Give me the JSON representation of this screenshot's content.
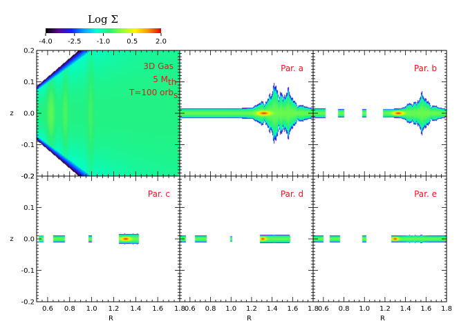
{
  "chart_data": {
    "type": "heatmap",
    "colorbar": {
      "title": "Log Σ",
      "ticks": [
        "-4.0",
        "-2.5",
        "-1.0",
        "0.5",
        "2.0"
      ],
      "range": [
        -4.0,
        2.0
      ],
      "colors": [
        "#000000",
        "#5a0a8c",
        "#1a1aff",
        "#00a8ff",
        "#00ffd0",
        "#28f078",
        "#96ff32",
        "#fff500",
        "#ff9600",
        "#e60000"
      ]
    },
    "x_axis": {
      "label": "R",
      "range": [
        0.5,
        1.8
      ],
      "ticks": [
        "0.6",
        "0.8",
        "1.0",
        "1.2",
        "1.4",
        "1.6",
        "1.8"
      ]
    },
    "y_axis": {
      "label": "z",
      "range": [
        -0.2,
        0.2
      ],
      "ticks": [
        "-0.2",
        "-0.1",
        "0.0",
        "0.1",
        "0.2"
      ]
    },
    "panels": [
      {
        "id": "3d-gas",
        "lines": [
          "3D Gas",
          "5 M",
          "T=100 orb"
        ],
        "mth_subscript": "th",
        "orb_subscript": "s"
      },
      {
        "id": "par-a",
        "lines": [
          "Par. a"
        ]
      },
      {
        "id": "par-b",
        "lines": [
          "Par. b"
        ]
      },
      {
        "id": "par-c",
        "lines": [
          "Par. c"
        ]
      },
      {
        "id": "par-d",
        "lines": [
          "Par. d"
        ]
      },
      {
        "id": "par-e",
        "lines": [
          "Par. e"
        ]
      }
    ]
  }
}
